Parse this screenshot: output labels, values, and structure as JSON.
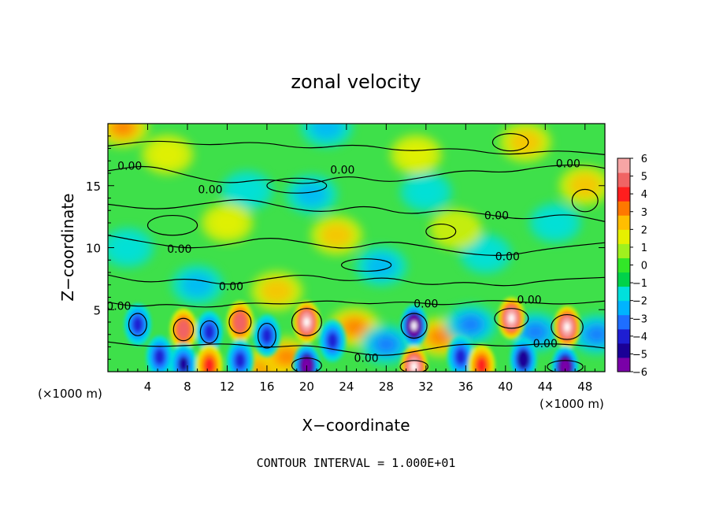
{
  "chart_data": {
    "type": "heatmap",
    "title": "zonal velocity",
    "xlabel": "X−coordinate",
    "ylabel": "Z−coordinate",
    "x_unit_left": "(×1000 m)",
    "x_unit_right": "(×1000 m)",
    "xlim": [
      0,
      50
    ],
    "ylim": [
      0,
      20
    ],
    "x_ticks": [
      4,
      8,
      12,
      16,
      20,
      24,
      28,
      32,
      36,
      40,
      44,
      48
    ],
    "x_tick_labels": [
      "4",
      "8",
      "12",
      "16",
      "20",
      "24",
      "28",
      "32",
      "36",
      "40",
      "44",
      "48"
    ],
    "y_ticks": [
      5,
      10,
      15
    ],
    "y_tick_labels": [
      "5",
      "10",
      "15"
    ],
    "colorbar": {
      "range": [
        -6,
        6
      ],
      "tick_values": [
        6,
        5,
        4,
        3,
        2,
        1,
        0,
        -1,
        -2,
        -3,
        -4,
        -5,
        -6
      ],
      "tick_labels": [
        "6",
        "5",
        "4",
        "3",
        "2",
        "1",
        "0",
        "−1",
        "−2",
        "−3",
        "−4",
        "−5",
        "−6"
      ],
      "colors": [
        "#7a00a8",
        "#1a0096",
        "#1e1ed2",
        "#1e6eff",
        "#00b4ff",
        "#00e0dc",
        "#00d24a",
        "#32e628",
        "#a0f01e",
        "#e6f000",
        "#ffbe00",
        "#ff7800",
        "#ff1e1e",
        "#f06464",
        "#f7a5a5"
      ]
    },
    "contour_interval_text": "CONTOUR INTERVAL = 1.000E+01",
    "contour_labels": [
      {
        "text": "0.00",
        "x": 2.2,
        "z": 16.6
      },
      {
        "text": "0.00",
        "x": 10.3,
        "z": 14.7
      },
      {
        "text": "0.00",
        "x": 23.6,
        "z": 16.3
      },
      {
        "text": "0.00",
        "x": 46.3,
        "z": 16.8
      },
      {
        "text": "0.00",
        "x": 39.1,
        "z": 12.6
      },
      {
        "text": "0.00",
        "x": 7.2,
        "z": 9.9
      },
      {
        "text": "0.00",
        "x": 40.2,
        "z": 9.3
      },
      {
        "text": "0.00",
        "x": 12.4,
        "z": 6.9
      },
      {
        "text": "0.00",
        "x": 1.1,
        "z": 5.3
      },
      {
        "text": "0.00",
        "x": 32.0,
        "z": 5.5
      },
      {
        "text": "0.00",
        "x": 42.4,
        "z": 5.8
      },
      {
        "text": "0.00",
        "x": 44.0,
        "z": 2.3
      },
      {
        "text": "0.00",
        "x": 26.0,
        "z": 1.1
      }
    ],
    "features": [
      {
        "x": 3.0,
        "z": 3.8,
        "v": -3.5
      },
      {
        "x": 5.2,
        "z": 1.2,
        "v": -3.2
      },
      {
        "x": 7.6,
        "z": 3.4,
        "v": 4.2
      },
      {
        "x": 7.6,
        "z": 0.6,
        "v": -4.0
      },
      {
        "x": 10.2,
        "z": 3.2,
        "v": -3.6
      },
      {
        "x": 10.2,
        "z": 0.5,
        "v": 3.5
      },
      {
        "x": 13.3,
        "z": 4.0,
        "v": 4.6
      },
      {
        "x": 13.3,
        "z": 0.9,
        "v": -3.5
      },
      {
        "x": 16.0,
        "z": 2.9,
        "v": -3.8
      },
      {
        "x": 16.0,
        "z": 0.4,
        "v": 3.0
      },
      {
        "x": 18.0,
        "z": 1.2,
        "v": 2.4
      },
      {
        "x": 20.0,
        "z": 4.0,
        "v": 6.8
      },
      {
        "x": 20.0,
        "z": 0.5,
        "v": -5.8
      },
      {
        "x": 22.6,
        "z": 2.5,
        "v": -3.2
      },
      {
        "x": 24.8,
        "z": 3.6,
        "v": 2.6
      },
      {
        "x": 28.0,
        "z": 2.2,
        "v": -2.6
      },
      {
        "x": 30.8,
        "z": 3.7,
        "v": -6.5
      },
      {
        "x": 30.8,
        "z": 0.4,
        "v": 6.2
      },
      {
        "x": 33.4,
        "z": 2.8,
        "v": 2.8
      },
      {
        "x": 35.5,
        "z": 1.2,
        "v": -3.2
      },
      {
        "x": 37.6,
        "z": 0.5,
        "v": 3.2
      },
      {
        "x": 40.6,
        "z": 4.3,
        "v": 6.4
      },
      {
        "x": 41.8,
        "z": 1.0,
        "v": -4.2
      },
      {
        "x": 43.0,
        "z": 3.2,
        "v": -2.8
      },
      {
        "x": 46.2,
        "z": 3.6,
        "v": 6.4
      },
      {
        "x": 46.0,
        "z": 0.4,
        "v": -6.0
      },
      {
        "x": 49.2,
        "z": 3.0,
        "v": -2.8
      },
      {
        "x": 36.5,
        "z": 3.8,
        "v": -2.6
      },
      {
        "x": 20.5,
        "z": 14.3,
        "v": -2.0
      },
      {
        "x": 14.0,
        "z": 14.6,
        "v": -1.5
      },
      {
        "x": 27.5,
        "z": 8.5,
        "v": -1.6
      },
      {
        "x": 9.0,
        "z": 7.0,
        "v": -1.8
      },
      {
        "x": 32.0,
        "z": 14.5,
        "v": -1.3
      },
      {
        "x": 38.0,
        "z": 9.5,
        "v": -1.5
      },
      {
        "x": 45.0,
        "z": 12.0,
        "v": -1.2
      },
      {
        "x": 2.0,
        "z": 10.0,
        "v": -1.3
      },
      {
        "x": 6.0,
        "z": 17.5,
        "v": 1.3
      },
      {
        "x": 23.0,
        "z": 11.0,
        "v": 1.8
      },
      {
        "x": 42.0,
        "z": 18.5,
        "v": 1.5
      },
      {
        "x": 12.0,
        "z": 12.0,
        "v": 1.4
      },
      {
        "x": 1.5,
        "z": 19.7,
        "v": 2.5
      },
      {
        "x": 22.0,
        "z": 19.7,
        "v": -2.0
      },
      {
        "x": 31.0,
        "z": 17.5,
        "v": 1.2
      },
      {
        "x": 48.0,
        "z": 15.0,
        "v": 1.6
      },
      {
        "x": 17.0,
        "z": 6.5,
        "v": 1.5
      },
      {
        "x": 35.0,
        "z": 11.5,
        "v": 1.0
      }
    ],
    "contours": [
      [
        [
          0,
          18.2
        ],
        [
          5,
          18.7
        ],
        [
          10,
          18.2
        ],
        [
          15,
          18.6
        ],
        [
          20,
          17.9
        ],
        [
          25,
          18.4
        ],
        [
          30,
          17.7
        ],
        [
          35,
          18.1
        ],
        [
          40,
          17.4
        ],
        [
          45,
          17.9
        ],
        [
          50,
          17.5
        ]
      ],
      [
        [
          0,
          16.2
        ],
        [
          4,
          16.7
        ],
        [
          8,
          15.8
        ],
        [
          12,
          15.1
        ],
        [
          16,
          15.6
        ],
        [
          20,
          15.0
        ],
        [
          24,
          15.9
        ],
        [
          28,
          15.2
        ],
        [
          32,
          15.7
        ],
        [
          36,
          16.3
        ],
        [
          40,
          16.0
        ],
        [
          44,
          16.6
        ],
        [
          48,
          16.7
        ],
        [
          50,
          16.4
        ]
      ],
      [
        [
          0,
          13.5
        ],
        [
          5,
          13.0
        ],
        [
          10,
          13.6
        ],
        [
          14,
          14.0
        ],
        [
          18,
          13.2
        ],
        [
          22,
          12.8
        ],
        [
          26,
          13.5
        ],
        [
          30,
          12.6
        ],
        [
          34,
          13.1
        ],
        [
          38,
          12.7
        ],
        [
          42,
          12.2
        ],
        [
          46,
          12.8
        ],
        [
          50,
          12.1
        ]
      ],
      [
        [
          0,
          11.0
        ],
        [
          4,
          10.4
        ],
        [
          8,
          9.9
        ],
        [
          12,
          10.2
        ],
        [
          16,
          10.9
        ],
        [
          20,
          10.4
        ],
        [
          24,
          9.8
        ],
        [
          28,
          10.6
        ],
        [
          32,
          10.1
        ],
        [
          36,
          9.5
        ],
        [
          40,
          9.3
        ],
        [
          44,
          9.9
        ],
        [
          50,
          10.4
        ]
      ],
      [
        [
          0,
          7.8
        ],
        [
          4,
          7.1
        ],
        [
          8,
          7.6
        ],
        [
          12,
          6.9
        ],
        [
          16,
          7.5
        ],
        [
          20,
          7.9
        ],
        [
          24,
          7.2
        ],
        [
          28,
          7.7
        ],
        [
          32,
          6.9
        ],
        [
          36,
          7.3
        ],
        [
          40,
          6.8
        ],
        [
          44,
          7.4
        ],
        [
          50,
          7.6
        ]
      ],
      [
        [
          0,
          5.6
        ],
        [
          3,
          5.2
        ],
        [
          6,
          5.5
        ],
        [
          10,
          5.1
        ],
        [
          14,
          5.6
        ],
        [
          18,
          5.4
        ],
        [
          22,
          5.8
        ],
        [
          26,
          5.4
        ],
        [
          30,
          5.7
        ],
        [
          34,
          5.3
        ],
        [
          38,
          5.8
        ],
        [
          42,
          5.6
        ],
        [
          46,
          5.4
        ],
        [
          50,
          5.7
        ]
      ],
      [
        [
          0,
          2.4
        ],
        [
          4,
          2.0
        ],
        [
          8,
          2.1
        ],
        [
          12,
          2.3
        ],
        [
          16,
          1.9
        ],
        [
          20,
          2.2
        ],
        [
          24,
          1.6
        ],
        [
          28,
          1.2
        ],
        [
          32,
          1.8
        ],
        [
          36,
          2.3
        ],
        [
          40,
          2.0
        ],
        [
          44,
          2.3
        ],
        [
          48,
          2.1
        ],
        [
          50,
          1.9
        ]
      ]
    ],
    "closed_contours": [
      {
        "x": 6.5,
        "z": 11.8,
        "rx": 2.5,
        "rz": 0.8
      },
      {
        "x": 19.0,
        "z": 15.0,
        "rx": 3.0,
        "rz": 0.6
      },
      {
        "x": 40.5,
        "z": 18.5,
        "rx": 1.8,
        "rz": 0.7
      },
      {
        "x": 48.0,
        "z": 13.8,
        "rx": 1.3,
        "rz": 0.9
      },
      {
        "x": 26.0,
        "z": 8.6,
        "rx": 2.5,
        "rz": 0.5
      },
      {
        "x": 33.5,
        "z": 11.3,
        "rx": 1.5,
        "rz": 0.6
      },
      {
        "x": 20.0,
        "z": 4.0,
        "rx": 1.5,
        "rz": 1.1
      },
      {
        "x": 30.8,
        "z": 3.7,
        "rx": 1.3,
        "rz": 1.0
      },
      {
        "x": 40.6,
        "z": 4.3,
        "rx": 1.7,
        "rz": 0.8
      },
      {
        "x": 46.2,
        "z": 3.6,
        "rx": 1.6,
        "rz": 1.0
      },
      {
        "x": 13.3,
        "z": 4.0,
        "rx": 1.1,
        "rz": 0.9
      },
      {
        "x": 7.6,
        "z": 3.4,
        "rx": 1.0,
        "rz": 0.9
      },
      {
        "x": 3.0,
        "z": 3.8,
        "rx": 0.9,
        "rz": 0.9
      },
      {
        "x": 10.2,
        "z": 3.2,
        "rx": 0.9,
        "rz": 0.9
      },
      {
        "x": 16.0,
        "z": 2.9,
        "rx": 0.9,
        "rz": 1.0
      },
      {
        "x": 20.0,
        "z": 0.5,
        "rx": 1.5,
        "rz": 0.6
      },
      {
        "x": 30.8,
        "z": 0.4,
        "rx": 1.4,
        "rz": 0.5
      },
      {
        "x": 46.0,
        "z": 0.4,
        "rx": 1.8,
        "rz": 0.5
      }
    ]
  }
}
